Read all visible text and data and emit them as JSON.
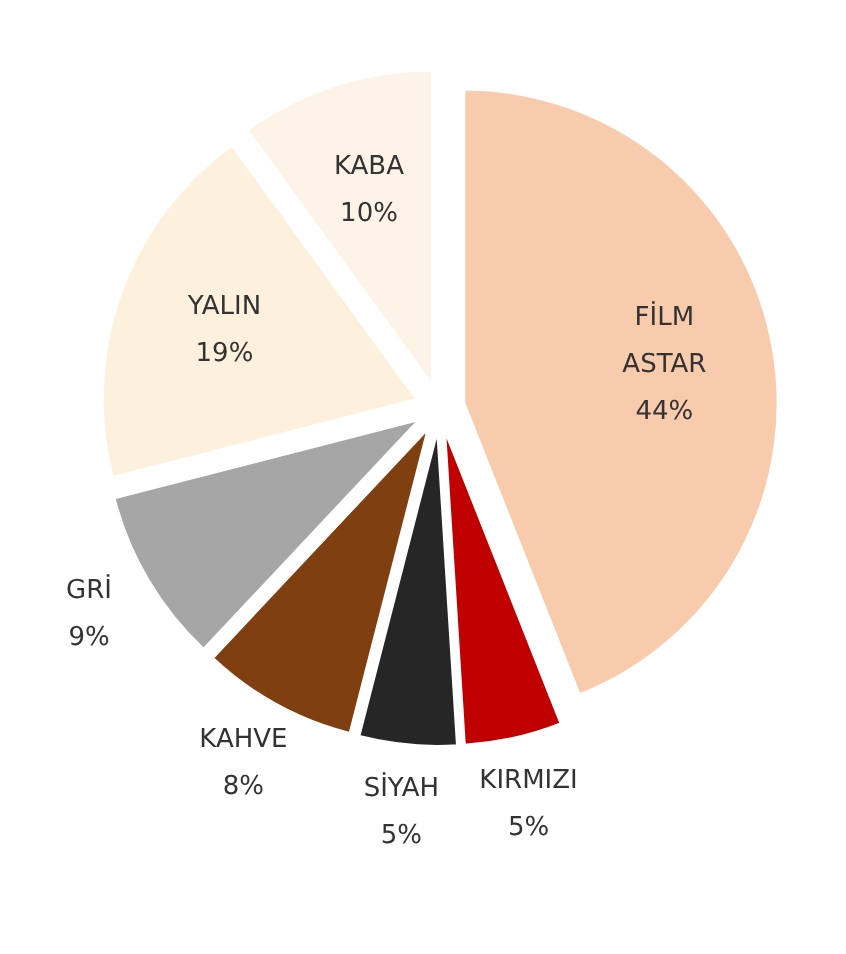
{
  "chart_data": {
    "type": "pie",
    "categories": [
      "FİLM ASTAR",
      "KIRMIZI",
      "SİYAH",
      "KAHVE",
      "GRİ",
      "YALIN",
      "KABA"
    ],
    "values": [
      44,
      5,
      5,
      8,
      9,
      19,
      10
    ],
    "colors": [
      "#f8cbad",
      "#c00000",
      "#262626",
      "#7f3f10",
      "#a6a6a6",
      "#fdf0dc",
      "#fdf3e7"
    ],
    "value_labels": [
      "44%",
      "5%",
      "5%",
      "8%",
      "9%",
      "19%",
      "10%"
    ]
  }
}
